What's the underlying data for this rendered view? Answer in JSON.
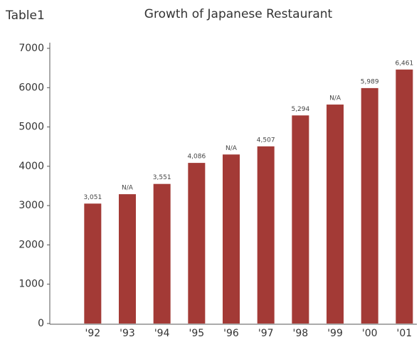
{
  "chart_data": {
    "type": "bar",
    "caption": "Table1",
    "title": "Growth of Japanese Restaurant",
    "categories": [
      "'92",
      "'93",
      "'94",
      "'95",
      "'96",
      "'97",
      "'98",
      "'99",
      "'00",
      "'01"
    ],
    "values": [
      3051,
      3290,
      3551,
      4086,
      4300,
      4507,
      5294,
      5570,
      5989,
      6461
    ],
    "value_labels": [
      "3,051",
      "N/A",
      "3,551",
      "4,086",
      "N/A",
      "4,507",
      "5,294",
      "N/A",
      "5,989",
      "6,461"
    ],
    "color": "#a33a36",
    "ylim": [
      0,
      7000
    ],
    "yticks": [
      0,
      1000,
      2000,
      3000,
      4000,
      5000,
      6000,
      7000
    ],
    "grid": false
  }
}
